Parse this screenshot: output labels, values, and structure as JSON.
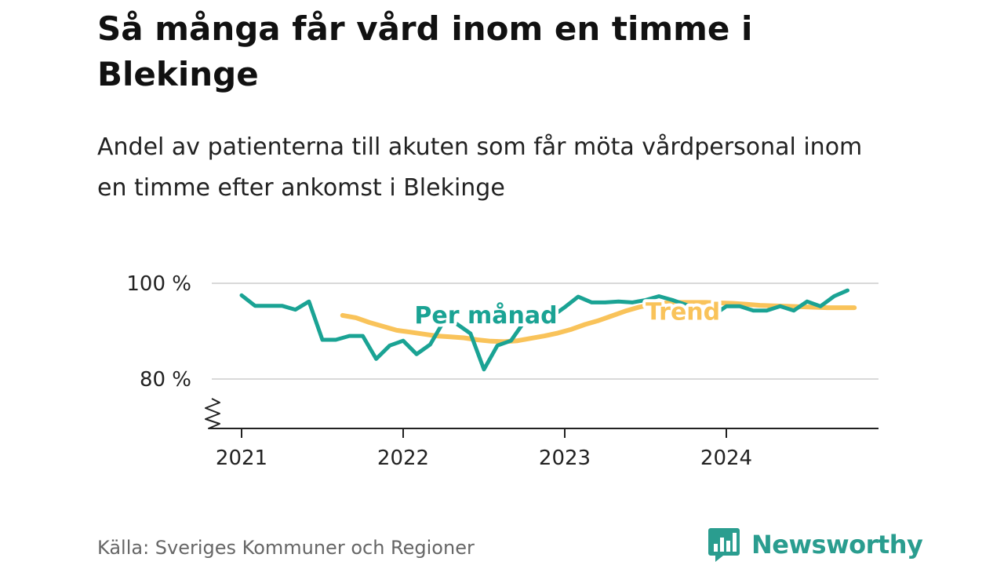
{
  "header": {
    "title": "Så många får vård inom en timme i Blekinge",
    "subtitle": "Andel av patienterna till akuten som får möta vårdpersonal inom en timme efter ankomst i Blekinge"
  },
  "footer": {
    "source": "Källa: Sveriges Kommuner och Regioner",
    "brand": "Newsworthy",
    "brand_icon": "bar-chart-speech-bubble-icon"
  },
  "colors": {
    "monthly": "#1aa394",
    "trend": "#f9c35a",
    "grid": "#d9d9d9",
    "axis": "#222222",
    "brand": "#2a9d8f"
  },
  "chart_data": {
    "type": "line",
    "ylim": [
      70,
      100
    ],
    "y_ticks": [
      {
        "value": 80,
        "label": "80 %"
      },
      {
        "value": 100,
        "label": "100 %"
      }
    ],
    "y_axis_broken": true,
    "x_ticks": [
      {
        "value": 2021.0,
        "label": "2021"
      },
      {
        "value": 2022.0,
        "label": "2022"
      },
      {
        "value": 2023.0,
        "label": "2023"
      },
      {
        "value": 2024.0,
        "label": "2024"
      }
    ],
    "xlim": [
      2020.92,
      2025.0
    ],
    "grid": "horizontal",
    "series": [
      {
        "name": "Per månad",
        "color_key": "monthly",
        "x": [
          2021.0,
          2021.083,
          2021.167,
          2021.25,
          2021.333,
          2021.417,
          2021.5,
          2021.583,
          2021.667,
          2021.75,
          2021.833,
          2021.917,
          2022.0,
          2022.083,
          2022.167,
          2022.25,
          2022.333,
          2022.417,
          2022.5,
          2022.583,
          2022.667,
          2022.75,
          2022.833,
          2022.917,
          2023.0,
          2023.083,
          2023.167,
          2023.25,
          2023.333,
          2023.417,
          2023.5,
          2023.583,
          2023.667,
          2023.75,
          2023.833,
          2023.917,
          2024.0,
          2024.083,
          2024.167,
          2024.25,
          2024.333,
          2024.417,
          2024.5,
          2024.583,
          2024.667,
          2024.75
        ],
        "values": [
          97.5,
          95.3,
          95.3,
          95.3,
          94.5,
          96.2,
          88.2,
          88.2,
          89.0,
          89.0,
          84.2,
          87.0,
          88.0,
          85.2,
          87.2,
          92.0,
          91.5,
          89.5,
          82.0,
          87.0,
          88.0,
          92.0,
          93.0,
          93.0,
          95.0,
          97.2,
          96.0,
          96.0,
          96.2,
          96.0,
          96.5,
          97.3,
          96.5,
          95.5,
          94.5,
          93.3,
          95.2,
          95.2,
          94.3,
          94.3,
          95.2,
          94.3,
          96.2,
          95.2,
          97.3,
          98.5
        ]
      },
      {
        "name": "Trend",
        "color_key": "trend",
        "x": [
          2021.625,
          2021.708,
          2021.792,
          2021.875,
          2021.958,
          2022.042,
          2022.125,
          2022.208,
          2022.292,
          2022.375,
          2022.458,
          2022.542,
          2022.625,
          2022.708,
          2022.792,
          2022.875,
          2022.958,
          2023.042,
          2023.125,
          2023.208,
          2023.292,
          2023.375,
          2023.458,
          2023.542,
          2023.625,
          2023.708,
          2023.792,
          2023.875,
          2023.958,
          2024.042,
          2024.125,
          2024.208,
          2024.292,
          2024.375,
          2024.458,
          2024.542,
          2024.625,
          2024.708,
          2024.792
        ],
        "values": [
          93.3,
          92.8,
          91.8,
          91.0,
          90.2,
          89.8,
          89.4,
          89.0,
          88.8,
          88.6,
          88.2,
          87.9,
          87.8,
          88.0,
          88.5,
          89.0,
          89.6,
          90.4,
          91.4,
          92.2,
          93.2,
          94.2,
          95.0,
          95.6,
          95.9,
          96.0,
          96.0,
          96.0,
          95.9,
          95.8,
          95.6,
          95.4,
          95.3,
          95.2,
          95.1,
          95.0,
          94.9,
          94.9,
          94.9
        ]
      }
    ],
    "series_labels": [
      {
        "text": "Per månad",
        "series": 0,
        "anchor_x": 2022.07,
        "anchor_y": 93.3
      },
      {
        "text": "Trend",
        "series": 1,
        "anchor_x": 2023.5,
        "anchor_y": 94.0
      }
    ]
  }
}
